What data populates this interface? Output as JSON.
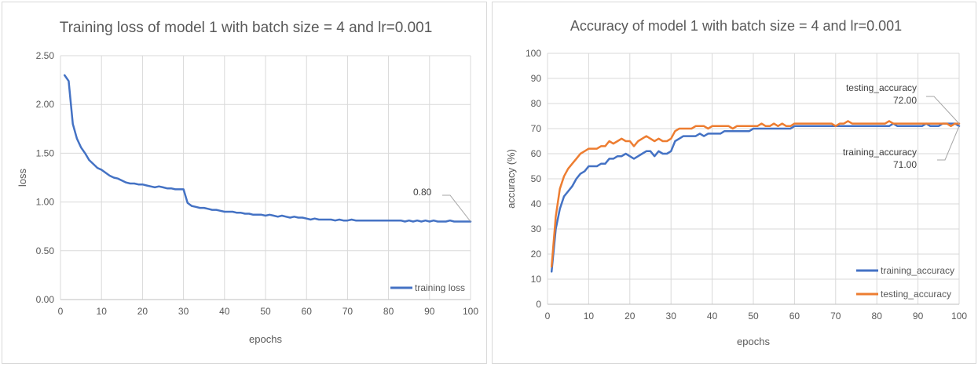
{
  "chart_data": [
    {
      "type": "line",
      "title": "Training loss of model 1 with batch size = 4 and lr=0.001",
      "xlabel": "epochs",
      "ylabel": "loss",
      "xlim": [
        0,
        100
      ],
      "ylim": [
        0,
        2.5
      ],
      "xticks": [
        "0",
        "10",
        "20",
        "30",
        "40",
        "50",
        "60",
        "70",
        "80",
        "90",
        "100"
      ],
      "yticks": [
        "0.00",
        "0.50",
        "1.00",
        "1.50",
        "2.00",
        "2.50"
      ],
      "grid": true,
      "legend_position": "bottom-right",
      "series": [
        {
          "name": "training loss",
          "color": "#4472C4",
          "x": [
            1,
            2,
            3,
            4,
            5,
            6,
            7,
            8,
            9,
            10,
            11,
            12,
            13,
            14,
            15,
            16,
            17,
            18,
            19,
            20,
            21,
            22,
            23,
            24,
            25,
            26,
            27,
            28,
            29,
            30,
            31,
            32,
            33,
            34,
            35,
            36,
            37,
            38,
            39,
            40,
            41,
            42,
            43,
            44,
            45,
            46,
            47,
            48,
            49,
            50,
            51,
            52,
            53,
            54,
            55,
            56,
            57,
            58,
            59,
            60,
            61,
            62,
            63,
            64,
            65,
            66,
            67,
            68,
            69,
            70,
            71,
            72,
            73,
            74,
            75,
            76,
            77,
            78,
            79,
            80,
            81,
            82,
            83,
            84,
            85,
            86,
            87,
            88,
            89,
            90,
            91,
            92,
            93,
            94,
            95,
            96,
            97,
            98,
            99,
            100
          ],
          "values": [
            2.3,
            2.24,
            1.8,
            1.65,
            1.56,
            1.5,
            1.43,
            1.39,
            1.35,
            1.33,
            1.3,
            1.27,
            1.25,
            1.24,
            1.22,
            1.2,
            1.19,
            1.19,
            1.18,
            1.18,
            1.17,
            1.16,
            1.15,
            1.16,
            1.15,
            1.14,
            1.14,
            1.13,
            1.13,
            1.13,
            0.99,
            0.96,
            0.95,
            0.94,
            0.94,
            0.93,
            0.92,
            0.92,
            0.91,
            0.9,
            0.9,
            0.9,
            0.89,
            0.89,
            0.88,
            0.88,
            0.87,
            0.87,
            0.87,
            0.86,
            0.87,
            0.86,
            0.85,
            0.86,
            0.85,
            0.84,
            0.85,
            0.84,
            0.84,
            0.83,
            0.82,
            0.83,
            0.82,
            0.82,
            0.82,
            0.82,
            0.81,
            0.82,
            0.81,
            0.81,
            0.82,
            0.81,
            0.81,
            0.81,
            0.81,
            0.81,
            0.81,
            0.81,
            0.81,
            0.81,
            0.81,
            0.81,
            0.81,
            0.8,
            0.81,
            0.8,
            0.81,
            0.8,
            0.81,
            0.8,
            0.81,
            0.8,
            0.8,
            0.8,
            0.81,
            0.8,
            0.8,
            0.8,
            0.8,
            0.8
          ]
        }
      ],
      "annotations": [
        {
          "series": "training loss",
          "x": 100,
          "lines": [
            "0.80"
          ]
        }
      ]
    },
    {
      "type": "line",
      "title": "Accuracy of model 1 with batch size = 4 and lr=0.001",
      "xlabel": "epochs",
      "ylabel": "accuracy (%)",
      "xlim": [
        0,
        100
      ],
      "ylim": [
        0,
        100
      ],
      "xticks": [
        "0",
        "10",
        "20",
        "30",
        "40",
        "50",
        "60",
        "70",
        "80",
        "90",
        "100"
      ],
      "yticks": [
        "0",
        "10",
        "20",
        "30",
        "40",
        "50",
        "60",
        "70",
        "80",
        "90",
        "100"
      ],
      "grid": true,
      "legend_position": "bottom-right",
      "series": [
        {
          "name": "training_accuracy",
          "color": "#4472C4",
          "x": [
            1,
            2,
            3,
            4,
            5,
            6,
            7,
            8,
            9,
            10,
            11,
            12,
            13,
            14,
            15,
            16,
            17,
            18,
            19,
            20,
            21,
            22,
            23,
            24,
            25,
            26,
            27,
            28,
            29,
            30,
            31,
            32,
            33,
            34,
            35,
            36,
            37,
            38,
            39,
            40,
            41,
            42,
            43,
            44,
            45,
            46,
            47,
            48,
            49,
            50,
            51,
            52,
            53,
            54,
            55,
            56,
            57,
            58,
            59,
            60,
            61,
            62,
            63,
            64,
            65,
            66,
            67,
            68,
            69,
            70,
            71,
            72,
            73,
            74,
            75,
            76,
            77,
            78,
            79,
            80,
            81,
            82,
            83,
            84,
            85,
            86,
            87,
            88,
            89,
            90,
            91,
            92,
            93,
            94,
            95,
            96,
            97,
            98,
            99,
            100
          ],
          "values": [
            13,
            30,
            38,
            43,
            45,
            47,
            50,
            52,
            53,
            55,
            55,
            55,
            56,
            56,
            58,
            58,
            59,
            59,
            60,
            59,
            58,
            59,
            60,
            61,
            61,
            59,
            61,
            60,
            60,
            61,
            65,
            66,
            67,
            67,
            67,
            67,
            68,
            67,
            68,
            68,
            68,
            68,
            69,
            69,
            69,
            69,
            69,
            69,
            69,
            70,
            70,
            70,
            70,
            70,
            70,
            70,
            70,
            70,
            70,
            71,
            71,
            71,
            71,
            71,
            71,
            71,
            71,
            71,
            71,
            71,
            71,
            71,
            71,
            71,
            71,
            71,
            71,
            71,
            71,
            71,
            71,
            71,
            71,
            72,
            71,
            71,
            71,
            71,
            71,
            71,
            71,
            72,
            71,
            71,
            71,
            72,
            72,
            72,
            72,
            71
          ]
        },
        {
          "name": "testing_accuracy",
          "color": "#ED7D31",
          "x": [
            1,
            2,
            3,
            4,
            5,
            6,
            7,
            8,
            9,
            10,
            11,
            12,
            13,
            14,
            15,
            16,
            17,
            18,
            19,
            20,
            21,
            22,
            23,
            24,
            25,
            26,
            27,
            28,
            29,
            30,
            31,
            32,
            33,
            34,
            35,
            36,
            37,
            38,
            39,
            40,
            41,
            42,
            43,
            44,
            45,
            46,
            47,
            48,
            49,
            50,
            51,
            52,
            53,
            54,
            55,
            56,
            57,
            58,
            59,
            60,
            61,
            62,
            63,
            64,
            65,
            66,
            67,
            68,
            69,
            70,
            71,
            72,
            73,
            74,
            75,
            76,
            77,
            78,
            79,
            80,
            81,
            82,
            83,
            84,
            85,
            86,
            87,
            88,
            89,
            90,
            91,
            92,
            93,
            94,
            95,
            96,
            97,
            98,
            99,
            100
          ],
          "values": [
            15,
            35,
            46,
            51,
            54,
            56,
            58,
            60,
            61,
            62,
            62,
            62,
            63,
            63,
            65,
            64,
            65,
            66,
            65,
            65,
            63,
            65,
            66,
            67,
            66,
            65,
            66,
            65,
            65,
            66,
            69,
            70,
            70,
            70,
            70,
            71,
            71,
            71,
            70,
            71,
            71,
            71,
            71,
            71,
            70,
            71,
            71,
            71,
            71,
            71,
            71,
            72,
            71,
            71,
            72,
            71,
            72,
            71,
            71,
            72,
            72,
            72,
            72,
            72,
            72,
            72,
            72,
            72,
            72,
            71,
            72,
            72,
            73,
            72,
            72,
            72,
            72,
            72,
            72,
            72,
            72,
            72,
            73,
            72,
            72,
            72,
            72,
            72,
            72,
            72,
            72,
            72,
            72,
            72,
            72,
            72,
            72,
            71,
            72,
            72
          ]
        }
      ],
      "annotations": [
        {
          "series": "testing_accuracy",
          "x": 100,
          "lines": [
            "testing_accuracy",
            "72.00"
          ]
        },
        {
          "series": "training_accuracy",
          "x": 100,
          "lines": [
            "training_accuracy",
            "71.00"
          ]
        }
      ]
    }
  ]
}
